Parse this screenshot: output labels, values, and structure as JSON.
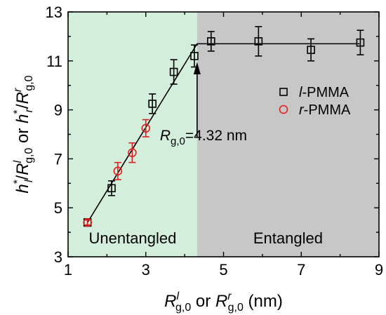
{
  "chart_data": {
    "type": "scatter",
    "xlabel": {
      "base": "R",
      "sup": "l",
      "sub": "g,0",
      "mid": " or ",
      "base2": "R",
      "sup2": "r",
      "sub2": "g,0",
      "unit": " (nm)"
    },
    "ylabel": {
      "h": "h",
      "hsup": "*",
      "lsub": "l",
      "slash": "/R",
      "lsup": "l",
      "gsub": "g,0",
      "mid": " or ",
      "h2": "h",
      "hsup2": "*",
      "rsub": "r",
      "slash2": "/R",
      "rsup": "r",
      "gsub2": "g,0"
    },
    "xlim": [
      1,
      9
    ],
    "ylim": [
      3,
      13
    ],
    "xticks": [
      "1",
      "3",
      "5",
      "7",
      "9"
    ],
    "yticks": [
      "3",
      "5",
      "7",
      "9",
      "11",
      "13"
    ],
    "regions": [
      {
        "label": "Unentangled",
        "x": [
          1,
          4.32
        ],
        "color": "#d3eedb"
      },
      {
        "label": "Entangled",
        "x": [
          4.32,
          9
        ],
        "color": "#c7c7c7"
      }
    ],
    "annotation": {
      "base": "R",
      "sub": "g,0",
      "value": "=4.32 nm",
      "x": 4.32
    },
    "fit_line": [
      [
        1.5,
        4.4
      ],
      [
        4.32,
        11.7
      ],
      [
        8.5,
        11.7
      ]
    ],
    "series": [
      {
        "name": "l-PMMA",
        "name_italic": "l",
        "name_rest": "-PMMA",
        "marker": "square",
        "color": "#000000",
        "points": [
          {
            "x": 1.5,
            "y": 4.4,
            "err": 0.15
          },
          {
            "x": 2.12,
            "y": 5.8,
            "err": 0.3
          },
          {
            "x": 3.17,
            "y": 9.25,
            "err": 0.4
          },
          {
            "x": 3.72,
            "y": 10.55,
            "err": 0.5
          },
          {
            "x": 4.25,
            "y": 11.2,
            "err": 0.45
          },
          {
            "x": 4.68,
            "y": 11.8,
            "err": 0.4
          },
          {
            "x": 5.9,
            "y": 11.8,
            "err": 0.6
          },
          {
            "x": 7.25,
            "y": 11.45,
            "err": 0.45
          },
          {
            "x": 8.52,
            "y": 11.75,
            "err": 0.5
          }
        ]
      },
      {
        "name": "r-PMMA",
        "name_italic": "r",
        "name_rest": "-PMMA",
        "marker": "circle",
        "color": "#e02020",
        "points": [
          {
            "x": 1.5,
            "y": 4.4,
            "err": 0.1
          },
          {
            "x": 2.28,
            "y": 6.5,
            "err": 0.35
          },
          {
            "x": 2.65,
            "y": 7.25,
            "err": 0.4
          },
          {
            "x": 3.0,
            "y": 8.25,
            "err": 0.35
          }
        ]
      }
    ]
  }
}
